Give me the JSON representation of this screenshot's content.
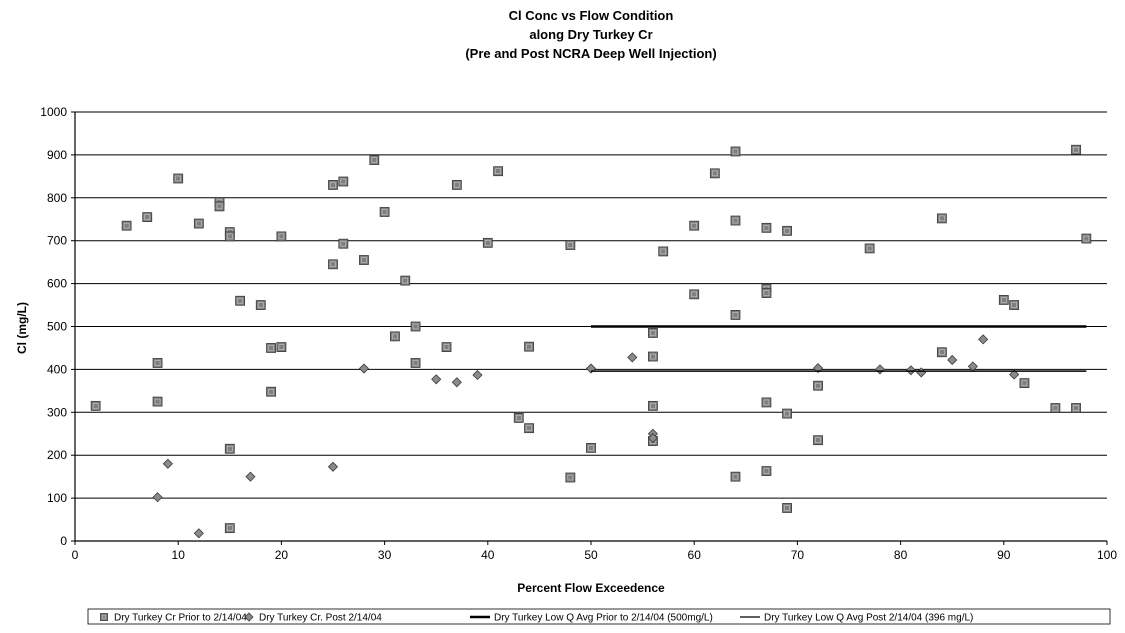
{
  "chart_data": {
    "type": "scatter",
    "title_lines": [
      "Cl Conc vs Flow Condition",
      "along Dry Turkey Cr",
      "(Pre and Post NCRA Deep Well Injection)"
    ],
    "xlabel": "Percent Flow Exceedence",
    "ylabel": "Cl (mg/L)",
    "xlim": [
      0,
      100
    ],
    "ylim": [
      0,
      1000
    ],
    "x_ticks": [
      "0",
      "10",
      "20",
      "30",
      "40",
      "50",
      "60",
      "70",
      "80",
      "90",
      "100"
    ],
    "y_ticks": [
      "0",
      "100",
      "200",
      "300",
      "400",
      "500",
      "600",
      "700",
      "800",
      "900",
      "1000"
    ],
    "grid": "horizontal",
    "legend_position": "bottom",
    "series": [
      {
        "name": "Dry Turkey Cr Prior to 2/14/04",
        "marker": "square",
        "color": "#7f7f7f",
        "points": [
          [
            2,
            315
          ],
          [
            5,
            735
          ],
          [
            7,
            755
          ],
          [
            8,
            415
          ],
          [
            8,
            325
          ],
          [
            10,
            845
          ],
          [
            12,
            740
          ],
          [
            14,
            790
          ],
          [
            14,
            780
          ],
          [
            15,
            720
          ],
          [
            15,
            710
          ],
          [
            15,
            215
          ],
          [
            15,
            30
          ],
          [
            16,
            560
          ],
          [
            18,
            550
          ],
          [
            19,
            450
          ],
          [
            19,
            348
          ],
          [
            20,
            452
          ],
          [
            20,
            710
          ],
          [
            25,
            830
          ],
          [
            25,
            645
          ],
          [
            26,
            838
          ],
          [
            26,
            693
          ],
          [
            28,
            655
          ],
          [
            29,
            888
          ],
          [
            30,
            767
          ],
          [
            31,
            477
          ],
          [
            32,
            607
          ],
          [
            33,
            500
          ],
          [
            33,
            415
          ],
          [
            36,
            452
          ],
          [
            37,
            830
          ],
          [
            40,
            695
          ],
          [
            41,
            862
          ],
          [
            43,
            287
          ],
          [
            44,
            263
          ],
          [
            44,
            453
          ],
          [
            48,
            690
          ],
          [
            48,
            148
          ],
          [
            50,
            217
          ],
          [
            56,
            485
          ],
          [
            56,
            430
          ],
          [
            56,
            315
          ],
          [
            56,
            233
          ],
          [
            57,
            675
          ],
          [
            60,
            735
          ],
          [
            60,
            575
          ],
          [
            62,
            857
          ],
          [
            64,
            908
          ],
          [
            64,
            747
          ],
          [
            64,
            527
          ],
          [
            64,
            150
          ],
          [
            67,
            730
          ],
          [
            67,
            588
          ],
          [
            67,
            578
          ],
          [
            67,
            323
          ],
          [
            67,
            163
          ],
          [
            69,
            723
          ],
          [
            69,
            297
          ],
          [
            69,
            77
          ],
          [
            72,
            362
          ],
          [
            72,
            235
          ],
          [
            77,
            682
          ],
          [
            84,
            752
          ],
          [
            84,
            440
          ],
          [
            90,
            562
          ],
          [
            91,
            550
          ],
          [
            92,
            368
          ],
          [
            95,
            310
          ],
          [
            97,
            310
          ],
          [
            97,
            912
          ],
          [
            98,
            705
          ]
        ]
      },
      {
        "name": "Dry Turkey Cr. Post 2/14/04",
        "marker": "diamond",
        "color": "#8a8a8a",
        "points": [
          [
            8,
            102
          ],
          [
            9,
            180
          ],
          [
            12,
            18
          ],
          [
            17,
            150
          ],
          [
            25,
            173
          ],
          [
            28,
            402
          ],
          [
            35,
            377
          ],
          [
            37,
            370
          ],
          [
            39,
            387
          ],
          [
            50,
            402
          ],
          [
            54,
            428
          ],
          [
            56,
            250
          ],
          [
            56,
            240
          ],
          [
            72,
            403
          ],
          [
            78,
            400
          ],
          [
            81,
            398
          ],
          [
            82,
            393
          ],
          [
            85,
            422
          ],
          [
            87,
            407
          ],
          [
            88,
            470
          ],
          [
            91,
            388
          ]
        ]
      },
      {
        "name": "Dry Turkey Low Q Avg Prior to 2/14/04 (500mg/L)",
        "marker": "line",
        "color": "#000000",
        "line_width": "thick",
        "x": [
          50,
          98
        ],
        "y": [
          500,
          500
        ]
      },
      {
        "name": "Dry Turkey Low Q Avg Post 2/14/04 (396 mg/L)",
        "marker": "line",
        "color": "#000000",
        "line_width": "thin",
        "x": [
          50,
          98
        ],
        "y": [
          396,
          396
        ]
      }
    ]
  }
}
